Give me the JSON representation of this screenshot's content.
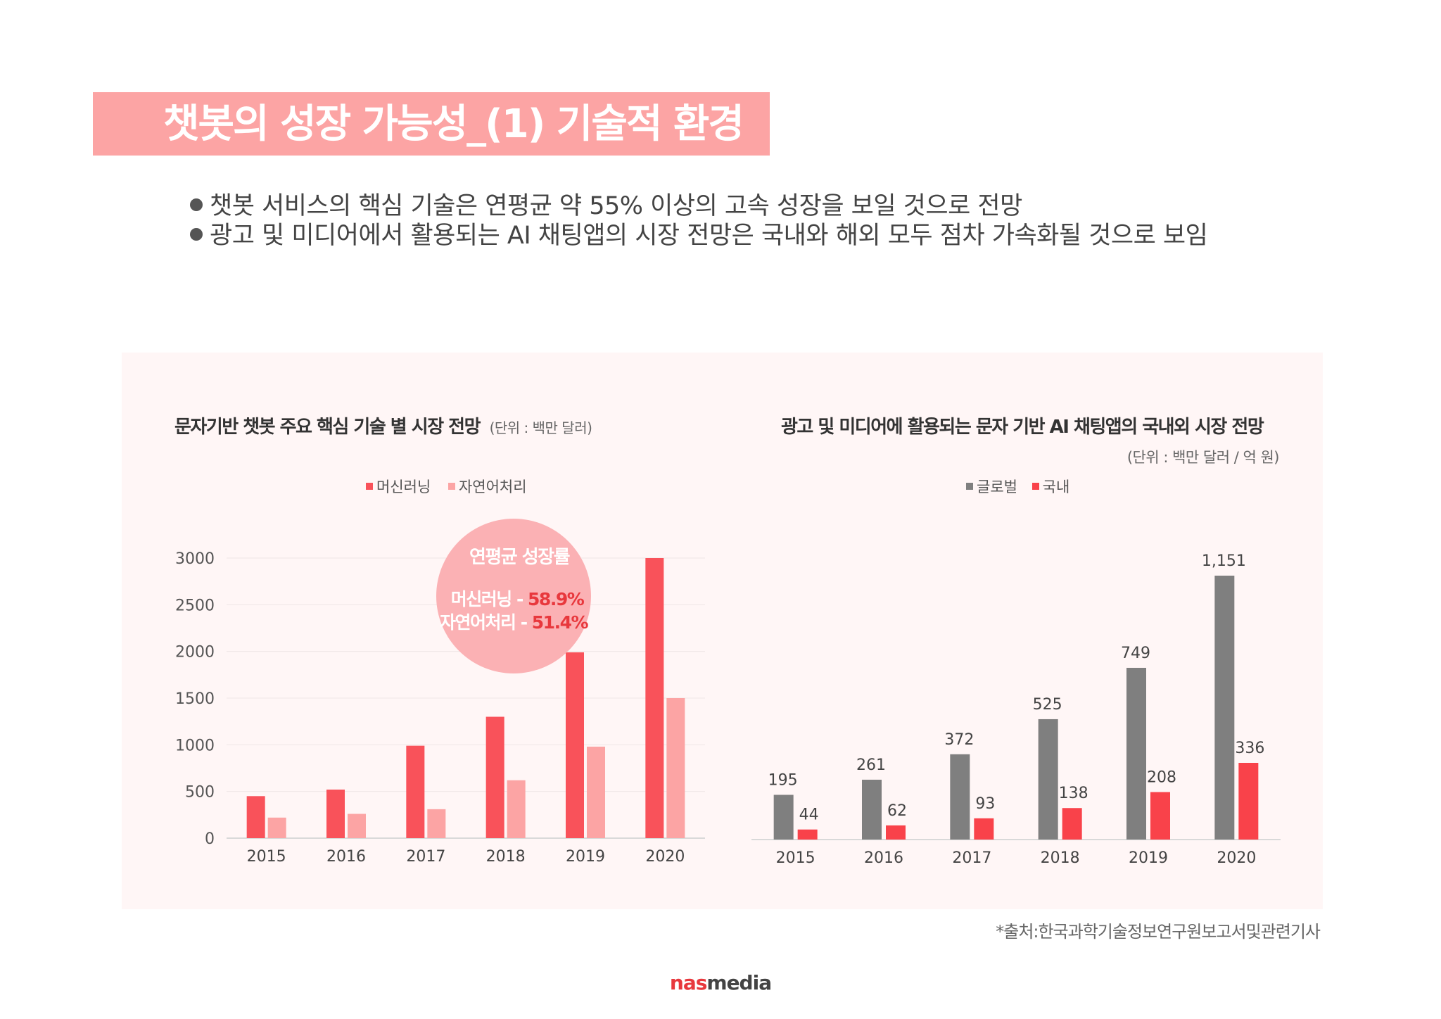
{
  "header": {
    "title": "챗봇의 성장 가능성_(1) 기술적 환경"
  },
  "bullets": [
    "챗봇 서비스의 핵심 기술은 연평균 약 55% 이상의 고속 성장을 보일 것으로 전망",
    "광고 및 미디어에서 활용되는 AI 채팅앱의 시장 전망은 국내와 해외 모두 점차 가속화될 것으로 보임"
  ],
  "left_chart_text": {
    "title": "문자기반 챗봇 주요 핵심 기술 별 시장 전망",
    "unit": "(단위 : 백만 달러)"
  },
  "right_chart_text": {
    "title": "광고 및 미디어에 활용되는 문자 기반 AI 채팅앱의 국내외 시장 전망",
    "unit": "(단위 : 백만 달러 / 억 원)"
  },
  "growth_bubble": {
    "heading": "연평균 성장률",
    "line1_label": "머신러닝 - ",
    "line1_value": "58.9%",
    "line2_label": "자연어처리 - ",
    "line2_value": "51.4%"
  },
  "source_note": "*출처:한국과학기술정보연구원보고서및관련기사",
  "logo": {
    "part1": "nas",
    "part2": "media"
  },
  "colors": {
    "title_band": "#fca4a4",
    "ml": "#f9525a",
    "nlp": "#fca4a4",
    "global": "#7f7f7f",
    "domestic": "#f9424a",
    "bubble": "#fbb1b4",
    "bubble_value": "#e8383d"
  },
  "chart_data": [
    {
      "type": "bar",
      "title": "문자기반 챗봇 주요 핵심 기술 별 시장 전망",
      "unit": "(단위 : 백만 달러)",
      "categories": [
        "2015",
        "2016",
        "2017",
        "2018",
        "2019",
        "2020"
      ],
      "series": [
        {
          "name": "머신러닝",
          "values": [
            450,
            520,
            990,
            1300,
            1990,
            3000
          ]
        },
        {
          "name": "자연어처리",
          "values": [
            220,
            260,
            310,
            620,
            980,
            1500
          ]
        }
      ],
      "ylim": [
        0,
        3000
      ],
      "yticks": [
        0,
        500,
        1000,
        1500,
        2000,
        2500,
        3000
      ],
      "grid": true,
      "legend": "top-center"
    },
    {
      "type": "bar",
      "title": "광고 및 미디어에 활용되는 문자 기반 AI 채팅앱의 국내외 시장 전망",
      "unit": "(단위 : 백만 달러 / 억 원)",
      "categories": [
        "2015",
        "2016",
        "2017",
        "2018",
        "2019",
        "2020"
      ],
      "series": [
        {
          "name": "글로벌",
          "values": [
            195,
            261,
            372,
            525,
            749,
            1151
          ],
          "labels": [
            "195",
            "261",
            "372",
            "525",
            "749",
            "1,151"
          ]
        },
        {
          "name": "국내",
          "values": [
            44,
            62,
            93,
            138,
            208,
            336
          ],
          "labels": [
            "44",
            "62",
            "93",
            "138",
            "208",
            "336"
          ]
        }
      ],
      "grid": false,
      "legend": "top-center",
      "data_labels": true
    }
  ]
}
